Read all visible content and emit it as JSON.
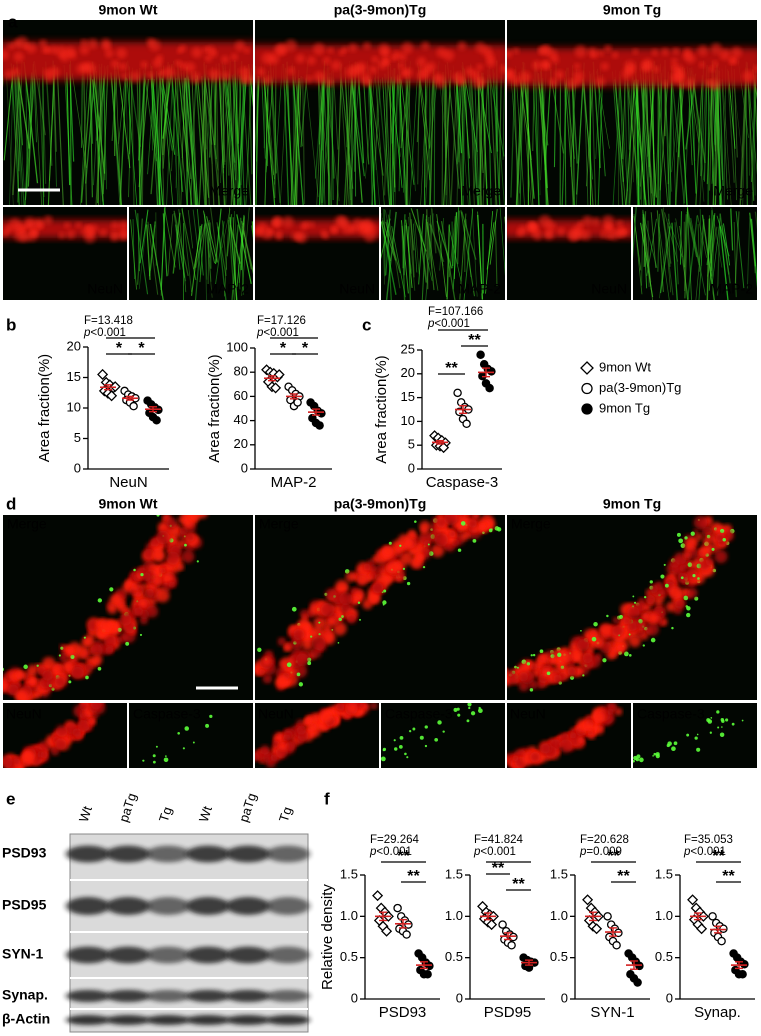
{
  "figure": {
    "panel_labels": [
      "a",
      "b",
      "c",
      "d",
      "e",
      "f"
    ],
    "a": {
      "columns": [
        "9mon Wt",
        "pa(3-9mon)Tg",
        "9mon Tg"
      ],
      "merge": "Merge",
      "neun": "NeuN",
      "map2": "MAP-2"
    },
    "d": {
      "columns": [
        "9mon Wt",
        "pa(3-9mon)Tg",
        "9mon Tg"
      ],
      "merge": "Merge",
      "neun": "NeuN",
      "caspase": "Caspase-3"
    },
    "e": {
      "lanes": [
        "Wt",
        "paTg",
        "Tg",
        "Wt",
        "paTg",
        "Tg"
      ],
      "rows": [
        "PSD93",
        "PSD95",
        "SYN-1",
        "Synap.",
        "β-Actin"
      ]
    }
  },
  "legend": {
    "items": [
      {
        "name": "9mon Wt",
        "marker": "diamond",
        "filled": false
      },
      {
        "name": "pa(3-9mon)Tg",
        "marker": "circle",
        "filled": false
      },
      {
        "name": "9mon Tg",
        "marker": "circle",
        "filled": true
      }
    ]
  },
  "mean_color": "#d42020",
  "chart_data": [
    {
      "type": "dotplot",
      "y_label": "Area fraction(%)",
      "category": "NeuN",
      "stats": [
        "F=13.418",
        "p<0.001"
      ],
      "significance": [
        "*",
        "*"
      ],
      "ylim": [
        0,
        20
      ],
      "yticks": [
        0,
        5,
        10,
        15,
        20
      ],
      "series": [
        {
          "values": [
            15.5,
            14.2,
            13.8,
            13.3,
            12.8,
            12.4,
            12.0,
            13.5
          ],
          "mean": 13.4,
          "sem": 0.4
        },
        {
          "values": [
            12.8,
            12.2,
            11.9,
            11.6,
            11.3,
            10.9,
            10.3
          ],
          "mean": 11.6,
          "sem": 0.3
        },
        {
          "values": [
            11.2,
            10.6,
            10.1,
            9.7,
            9.2,
            8.5,
            8.0
          ],
          "mean": 9.8,
          "sem": 0.4
        }
      ]
    },
    {
      "type": "dotplot",
      "y_label": "Area fraction(%)",
      "category": "MAP-2",
      "stats": [
        "F=17.126",
        "p<0.001"
      ],
      "significance": [
        "*",
        "*"
      ],
      "ylim": [
        0,
        100
      ],
      "yticks": [
        0,
        20,
        40,
        60,
        80,
        100
      ],
      "series": [
        {
          "values": [
            82,
            80,
            79,
            76,
            72,
            68,
            67,
            78
          ],
          "mean": 75,
          "sem": 2
        },
        {
          "values": [
            68,
            65,
            62,
            60,
            57,
            52,
            55
          ],
          "mean": 60,
          "sem": 2
        },
        {
          "values": [
            55,
            52,
            48,
            46,
            42,
            38,
            36
          ],
          "mean": 47,
          "sem": 2.5
        }
      ]
    },
    {
      "type": "dotplot",
      "y_label": "Area fraction(%)",
      "category": "Caspase-3",
      "stats": [
        "F=107.166",
        "p<0.001"
      ],
      "significance": [
        "**",
        "**"
      ],
      "ylim": [
        0,
        25
      ],
      "yticks": [
        0,
        5,
        10,
        15,
        20,
        25
      ],
      "series": [
        {
          "values": [
            7,
            6.5,
            6,
            5.5,
            5,
            4.8,
            4.5
          ],
          "mean": 5.6,
          "sem": 0.35
        },
        {
          "values": [
            16,
            14,
            13,
            12.5,
            12,
            10.5,
            9.5
          ],
          "mean": 12.5,
          "sem": 0.8
        },
        {
          "values": [
            24,
            22,
            21,
            20.5,
            19.5,
            18,
            17
          ],
          "mean": 20.3,
          "sem": 0.9
        }
      ]
    },
    {
      "type": "dotplot",
      "y_label": "Relative density",
      "category": "PSD93",
      "stats": [
        "F=29.264",
        "p<0.001"
      ],
      "significance": [
        "**",
        "**"
      ],
      "ylim": [
        0,
        1.5
      ],
      "yticks": [
        0,
        0.5,
        {
          "value": 1,
          "label": "1.0"
        },
        1.5
      ],
      "series": [
        {
          "values": [
            1.25,
            1.1,
            1.05,
            1.0,
            0.95,
            0.88,
            0.82
          ],
          "mean": 1.0,
          "sem": 0.05
        },
        {
          "values": [
            1.1,
            1.0,
            0.95,
            0.9,
            0.85,
            0.82,
            0.78
          ],
          "mean": 0.91,
          "sem": 0.05
        },
        {
          "values": [
            0.55,
            0.5,
            0.44,
            0.4,
            0.35,
            0.3,
            0.3
          ],
          "mean": 0.41,
          "sem": 0.04
        }
      ]
    },
    {
      "type": "dotplot",
      "category": "PSD95",
      "stats": [
        "F=41.824",
        "p<0.001"
      ],
      "significance": [
        "**",
        "**"
      ],
      "ylim": [
        0,
        1.5
      ],
      "yticks": [
        0,
        0.5,
        {
          "value": 1,
          "label": "1.0"
        },
        1.5
      ],
      "series": [
        {
          "values": [
            1.12,
            1.05,
            1.02,
            1.0,
            0.97,
            0.93,
            0.9
          ],
          "mean": 1.0,
          "sem": 0.04
        },
        {
          "values": [
            0.9,
            0.82,
            0.78,
            0.75,
            0.72,
            0.68,
            0.65
          ],
          "mean": 0.76,
          "sem": 0.04
        },
        {
          "values": [
            0.5,
            0.47,
            0.45,
            0.44,
            0.4,
            0.38
          ],
          "mean": 0.44,
          "sem": 0.03
        }
      ]
    },
    {
      "type": "dotplot",
      "category": "SYN-1",
      "stats": [
        "F=20.628",
        "p=0.009"
      ],
      "significance": [
        "**",
        "**"
      ],
      "ylim": [
        0,
        1.5
      ],
      "yticks": [
        0,
        0.5,
        {
          "value": 1,
          "label": "1.0"
        },
        1.5
      ],
      "series": [
        {
          "values": [
            1.2,
            1.1,
            1.05,
            1.0,
            0.95,
            0.88,
            0.85
          ],
          "mean": 1.0,
          "sem": 0.05
        },
        {
          "values": [
            1.0,
            0.9,
            0.85,
            0.8,
            0.75,
            0.7,
            0.65
          ],
          "mean": 0.81,
          "sem": 0.05
        },
        {
          "values": [
            0.55,
            0.5,
            0.45,
            0.4,
            0.3,
            0.25,
            0.2
          ],
          "mean": 0.41,
          "sem": 0.05
        }
      ]
    },
    {
      "type": "dotplot",
      "category": "Synap.",
      "stats": [
        "F=35.053",
        "p<0.001"
      ],
      "significance": [
        "**",
        "**"
      ],
      "ylim": [
        0,
        1.5
      ],
      "yticks": [
        0,
        0.5,
        {
          "value": 1,
          "label": "1.0"
        },
        1.5
      ],
      "series": [
        {
          "values": [
            1.2,
            1.1,
            1.05,
            1.0,
            0.96,
            0.9,
            0.85
          ],
          "mean": 1.0,
          "sem": 0.04
        },
        {
          "values": [
            1.0,
            0.92,
            0.88,
            0.85,
            0.8,
            0.75,
            0.7
          ],
          "mean": 0.84,
          "sem": 0.04
        },
        {
          "values": [
            0.55,
            0.5,
            0.45,
            0.42,
            0.35,
            0.3,
            0.3
          ],
          "mean": 0.41,
          "sem": 0.04
        }
      ]
    }
  ]
}
